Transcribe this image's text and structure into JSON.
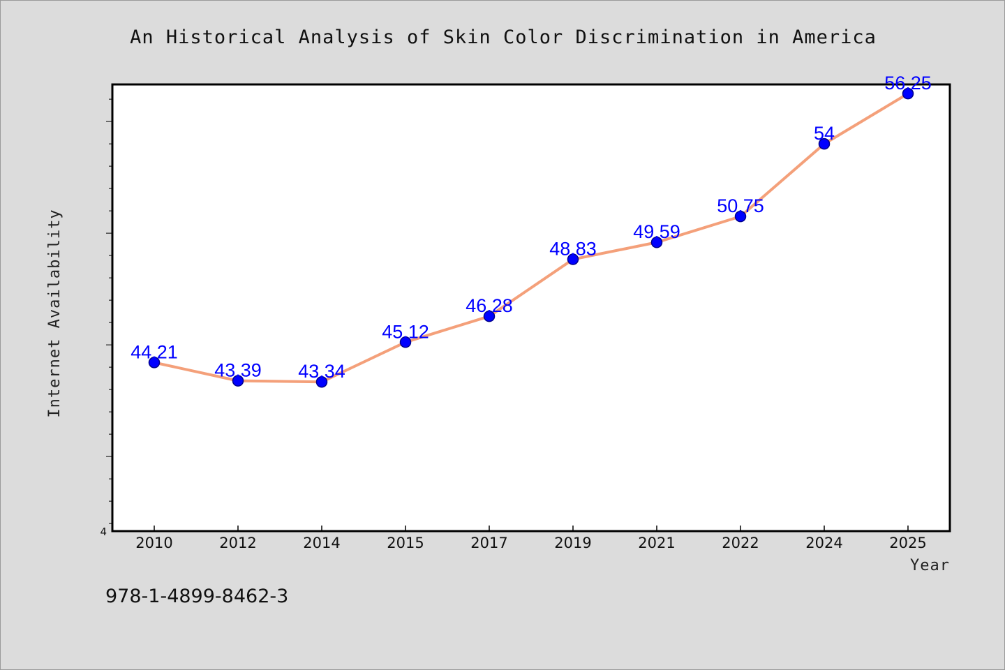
{
  "chart_data": {
    "type": "line",
    "title": "An Historical Analysis of Skin Color Discrimination in America",
    "xlabel": "Year",
    "ylabel": "Internet Availability",
    "categories": [
      "2010",
      "2012",
      "2014",
      "2015",
      "2017",
      "2019",
      "2021",
      "2022",
      "2024",
      "2025"
    ],
    "series": [
      {
        "values": [
          44.21,
          43.39,
          43.34,
          45.12,
          46.28,
          48.83,
          49.59,
          50.75,
          54,
          56.25
        ],
        "data_labels": [
          "44.21",
          "43.39",
          "43.34",
          "45.12",
          "46.28",
          "48.83",
          "49.59",
          "50.75",
          "54",
          "56.25"
        ]
      }
    ],
    "yaxis_visible_tick_label": "4",
    "ylim": [
      36.66,
      56.66
    ],
    "y_minor_tick_step": 1,
    "y_major_tick_step": 5,
    "grid": false,
    "colors": {
      "line": "#f4a07a",
      "marker": "#0000ff",
      "marker_edge": "#00008b",
      "data_label": "#0000ff",
      "plot_background": "#ffffff",
      "figure_background": "#dcdcdc"
    }
  },
  "footnote": "978-1-4899-8462-3"
}
